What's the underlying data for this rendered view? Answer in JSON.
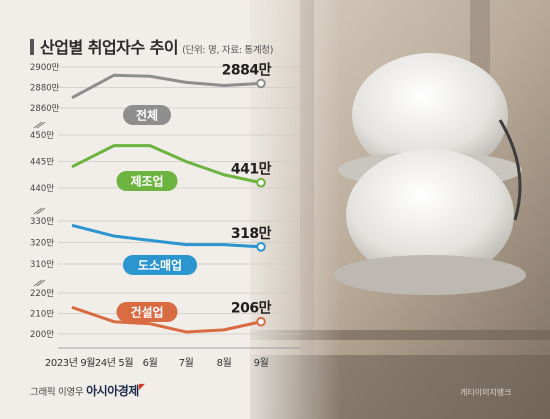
{
  "header": {
    "title": "산업별 취업자수 추이",
    "subtitle": "(단위: 명, 자료: 통계청)"
  },
  "footer": {
    "credit_prefix": "그래픽 이영우",
    "credit_brand": "아시아경제",
    "photo_credit": "게티이미지뱅크"
  },
  "colors": {
    "total": "#8e8e8e",
    "manufacturing": "#6db33f",
    "wholesale_retail": "#2b95cf",
    "construction": "#d96b43"
  },
  "chart_data": {
    "type": "line",
    "title": "산업별 취업자수 추이",
    "subtitle": "(단위: 명, 자료: 통계청)",
    "categories": [
      "2023년 9월",
      "24년 5월",
      "6월",
      "7월",
      "8월",
      "9월"
    ],
    "panels": [
      {
        "name": "전체",
        "color_key": "total",
        "ticks": [
          "2860만",
          "2880만",
          "2900만"
        ],
        "ylim": [
          2860,
          2900
        ],
        "values": [
          2870,
          2892,
          2891,
          2885,
          2882,
          2884
        ],
        "end_label": "2884만"
      },
      {
        "name": "제조업",
        "color_key": "manufacturing",
        "ticks": [
          "440만",
          "445만",
          "450만"
        ],
        "ylim": [
          440,
          450
        ],
        "values": [
          444,
          448,
          448,
          445,
          442.5,
          441
        ],
        "end_label": "441만"
      },
      {
        "name": "도소매업",
        "color_key": "wholesale_retail",
        "ticks": [
          "310만",
          "320만",
          "330만"
        ],
        "ylim": [
          310,
          330
        ],
        "values": [
          328,
          323,
          321,
          319,
          319,
          318
        ],
        "end_label": "318만"
      },
      {
        "name": "건설업",
        "color_key": "construction",
        "ticks": [
          "200만",
          "210만",
          "220만"
        ],
        "ylim": [
          200,
          220
        ],
        "values": [
          213,
          206,
          205,
          201,
          202,
          206
        ],
        "end_label": "206만"
      }
    ]
  }
}
